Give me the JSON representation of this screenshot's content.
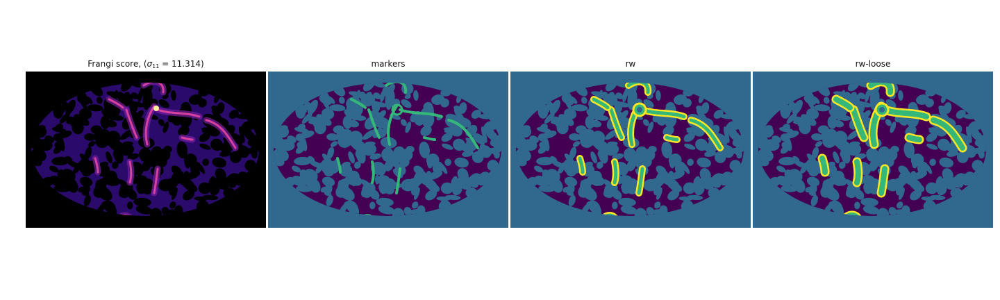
{
  "panels": [
    {
      "title_prefix": "Frangi score, (",
      "title_symbol": "σ",
      "title_subscript": "11",
      "title_suffix": " = 11.314)",
      "background": "#000000",
      "mask_color": "#2a0a6b",
      "highlight_color": "#d6409f",
      "peak_color": "#fff0a0"
    },
    {
      "title": "markers",
      "background": "#31688e",
      "mask_color": "#440154",
      "highlight_color": "#35b779"
    },
    {
      "title": "rw",
      "background": "#31688e",
      "mask_color": "#440154",
      "highlight_color": "#35b779",
      "outline_color": "#fde725"
    },
    {
      "title": "rw-loose",
      "background": "#31688e",
      "mask_color": "#440154",
      "highlight_color": "#35b779",
      "outline_color": "#fde725"
    }
  ]
}
